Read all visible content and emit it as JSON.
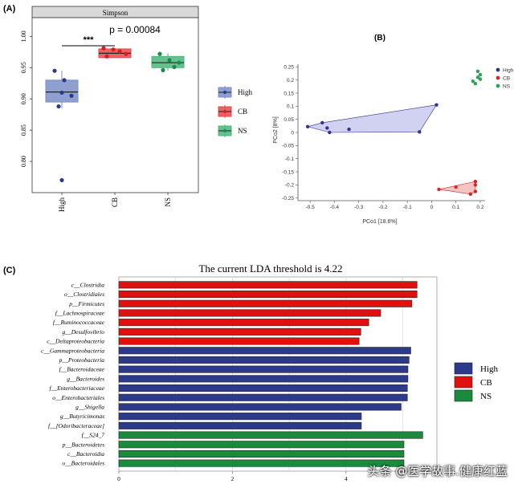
{
  "panels": {
    "a": "(A)",
    "b": "(B)",
    "c": "(C)"
  },
  "watermark": "头条 @医学故事.健康红蓝",
  "chart_data": [
    {
      "type": "box",
      "facet_title": "Simpson",
      "annotation": {
        "pvalue": "p = 0.00084",
        "stars": "***"
      },
      "categories": [
        "High",
        "CB",
        "NS"
      ],
      "ylim": [
        0.75,
        1.03
      ],
      "yticks": [
        0.8,
        0.85,
        0.9,
        0.95,
        1.0
      ],
      "yticklabels": [
        "0.80",
        "0.85",
        "0.90",
        "0.95",
        "1.00"
      ],
      "legend": [
        "High",
        "CB",
        "NS"
      ],
      "legend_position": "right",
      "colors": {
        "High": "#7b8ec8",
        "CB": "#e8474a",
        "NS": "#49b77a"
      },
      "boxes": [
        {
          "name": "High",
          "q1": 0.895,
          "median": 0.911,
          "q3": 0.93,
          "whisker_low": 0.885,
          "whisker_high": 0.945
        },
        {
          "name": "CB",
          "q1": 0.966,
          "median": 0.973,
          "q3": 0.98,
          "whisker_low": 0.966,
          "whisker_high": 0.981
        },
        {
          "name": "NS",
          "q1": 0.95,
          "median": 0.958,
          "q3": 0.968,
          "whisker_low": 0.945,
          "whisker_high": 0.973
        }
      ],
      "points": [
        {
          "group": "High",
          "values": [
            0.945,
            0.93,
            0.91,
            0.905,
            0.888,
            0.77
          ]
        },
        {
          "group": "CB",
          "values": [
            0.981,
            0.979,
            0.976,
            0.972,
            0.968
          ]
        },
        {
          "group": "NS",
          "values": [
            0.972,
            0.962,
            0.958,
            0.951,
            0.946
          ]
        }
      ]
    },
    {
      "type": "scatter",
      "title": "(B)",
      "xlabel": "PCo1 [18.6%]",
      "ylabel": "PCo2 [8%]",
      "xlim": [
        -0.55,
        0.22
      ],
      "ylim": [
        -0.26,
        0.26
      ],
      "xticks": [
        -0.5,
        -0.4,
        -0.3,
        -0.2,
        -0.1,
        0,
        0.1,
        0.2
      ],
      "xticklabels": [
        "-0.5",
        "-0.4",
        "-0.3",
        "-0.2",
        "-0.1",
        "0",
        "0.1",
        "0.2"
      ],
      "yticks": [
        -0.25,
        -0.2,
        -0.15,
        -0.1,
        -0.05,
        0,
        0.05,
        0.1,
        0.15,
        0.2,
        0.25
      ],
      "yticklabels": [
        "-0.25",
        "-0.2",
        "-0.15",
        "-0.1",
        "-0.05",
        "0",
        "0.05",
        "0.1",
        "0.15",
        "0.2",
        "0.25"
      ],
      "legend": [
        "High",
        "CB",
        "NS"
      ],
      "legend_position": "top-right",
      "colors": {
        "High": "#33338f",
        "CB": "#d62728",
        "NS": "#2ca05a"
      },
      "hull_colors": {
        "High": "#c9c9ee",
        "CB": "#f5b8b8"
      },
      "series": [
        {
          "name": "High",
          "points": [
            [
              -0.51,
              0.022
            ],
            [
              -0.45,
              0.037
            ],
            [
              -0.43,
              0.017
            ],
            [
              -0.42,
              0.0
            ],
            [
              -0.34,
              0.012
            ],
            [
              -0.05,
              0.002
            ],
            [
              0.02,
              0.105
            ]
          ],
          "hull": [
            [
              -0.51,
              0.022
            ],
            [
              -0.45,
              0.037
            ],
            [
              0.02,
              0.105
            ],
            [
              -0.05,
              0.002
            ],
            [
              -0.42,
              0.0
            ]
          ]
        },
        {
          "name": "CB",
          "points": [
            [
              0.03,
              -0.217
            ],
            [
              0.1,
              -0.208
            ],
            [
              0.16,
              -0.235
            ],
            [
              0.18,
              -0.187
            ],
            [
              0.18,
              -0.225
            ],
            [
              0.18,
              -0.2
            ]
          ],
          "hull": [
            [
              0.03,
              -0.217
            ],
            [
              0.18,
              -0.187
            ],
            [
              0.18,
              -0.225
            ],
            [
              0.16,
              -0.235
            ]
          ]
        },
        {
          "name": "NS",
          "points": [
            [
              0.17,
              0.195
            ],
            [
              0.18,
              0.186
            ],
            [
              0.19,
              0.21
            ],
            [
              0.19,
              0.233
            ],
            [
              0.2,
              0.22
            ],
            [
              0.2,
              0.203
            ]
          ]
        }
      ]
    },
    {
      "type": "bar",
      "orientation": "horizontal",
      "title": "The current LDA threshold is 4.22",
      "xlim": [
        0,
        5.6
      ],
      "xticks": [
        0,
        2,
        4
      ],
      "xticklabels": [
        "0",
        "2",
        "4"
      ],
      "legend": [
        "High",
        "CB",
        "NS"
      ],
      "legend_position": "right",
      "colors": {
        "High": "#2d3a8c",
        "CB": "#e01010",
        "NS": "#1a8a3c"
      },
      "bars": [
        {
          "label": "c__Clostridia",
          "value": 5.25,
          "group": "CB"
        },
        {
          "label": "o__Clostridiales",
          "value": 5.25,
          "group": "CB"
        },
        {
          "label": "p__Firmicutes",
          "value": 5.16,
          "group": "CB"
        },
        {
          "label": "f__Lachnospiraceae",
          "value": 4.61,
          "group": "CB"
        },
        {
          "label": "f__Ruminococcaceae",
          "value": 4.4,
          "group": "CB"
        },
        {
          "label": "g__Desulfovibrio",
          "value": 4.26,
          "group": "CB"
        },
        {
          "label": "c__Deltaproteobacteria",
          "value": 4.23,
          "group": "CB"
        },
        {
          "label": "c__Gammaproteobacteria",
          "value": 5.14,
          "group": "High"
        },
        {
          "label": "p__Proteobacteria",
          "value": 5.11,
          "group": "High"
        },
        {
          "label": "f__Bacteroidaceae",
          "value": 5.09,
          "group": "High"
        },
        {
          "label": "g__Bacteroides",
          "value": 5.09,
          "group": "High"
        },
        {
          "label": "f__Enterobacteriaceae",
          "value": 5.08,
          "group": "High"
        },
        {
          "label": "o__Enterobacteriales",
          "value": 5.08,
          "group": "High"
        },
        {
          "label": "g__Shigella",
          "value": 4.97,
          "group": "High"
        },
        {
          "label": "g__Butyricimonas",
          "value": 4.27,
          "group": "High"
        },
        {
          "label": "f__[Odoribacteraceae]",
          "value": 4.27,
          "group": "High"
        },
        {
          "label": "f__S24_7",
          "value": 5.35,
          "group": "NS"
        },
        {
          "label": "p__Bacteroidetes",
          "value": 5.02,
          "group": "NS"
        },
        {
          "label": "c__Bacteroidia",
          "value": 5.02,
          "group": "NS"
        },
        {
          "label": "o__Bacteroidales",
          "value": 5.02,
          "group": "NS"
        }
      ]
    }
  ]
}
